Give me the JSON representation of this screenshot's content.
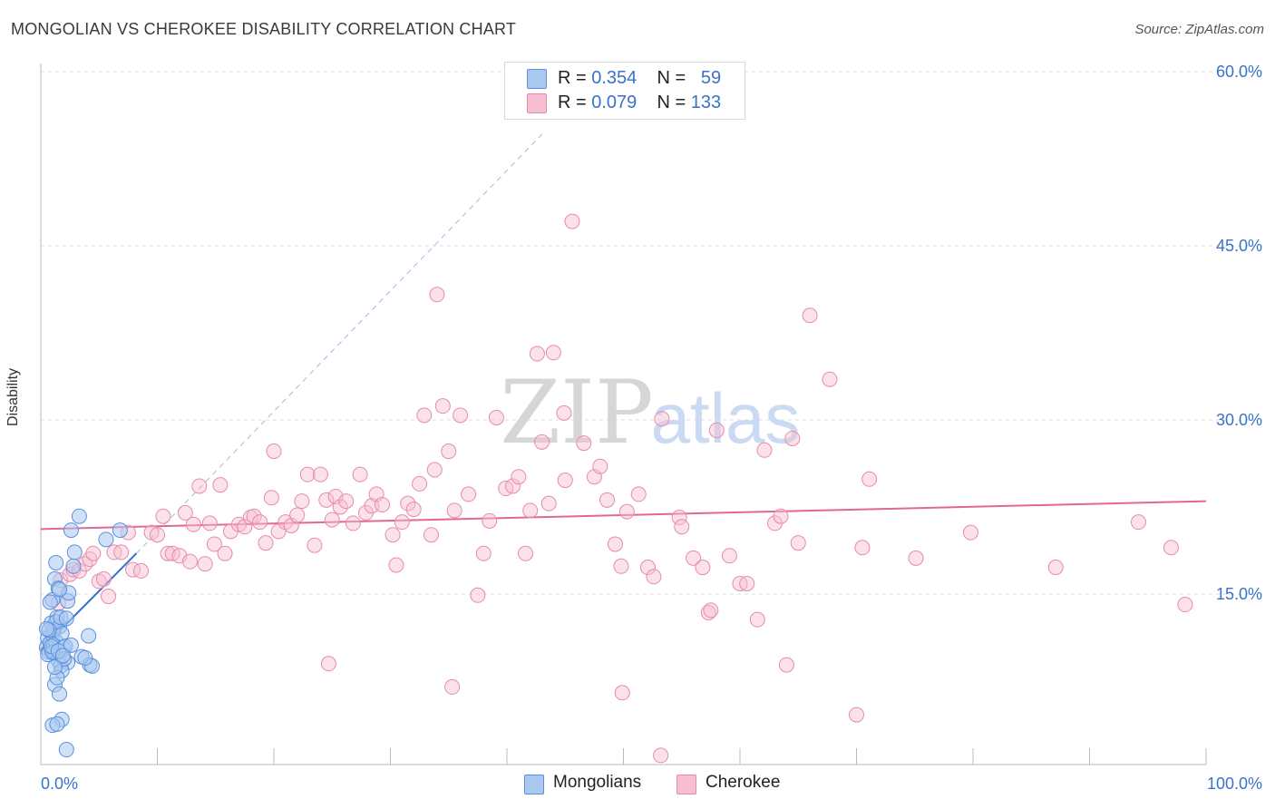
{
  "header": {
    "title": "MONGOLIAN VS CHEROKEE DISABILITY CORRELATION CHART",
    "source": "Source: ZipAtlas.com"
  },
  "watermark": {
    "zip": "ZIP",
    "atlas": "atlas"
  },
  "legend_top": [
    {
      "r_label": "R =",
      "r_value": "0.354",
      "n_label": "N =",
      "n_value": "59"
    },
    {
      "r_label": "R =",
      "r_value": "0.079",
      "n_label": "N =",
      "n_value": "133"
    }
  ],
  "legend_bottom": {
    "mongolians": "Mongolians",
    "cherokee": "Cherokee"
  },
  "colors": {
    "mongolians_fill": "#a9c8f0",
    "mongolians_stroke": "#5b8fdc",
    "mongolians_line": "#2f6fd1",
    "cherokee_fill": "#f6bfd1",
    "cherokee_stroke": "#e88aab",
    "cherokee_line": "#e0679a",
    "tick_label": "#3a72c9",
    "grid": "#dddddd"
  },
  "chart_data": {
    "type": "scatter",
    "title": "MONGOLIAN VS CHEROKEE DISABILITY CORRELATION CHART",
    "xlabel": "",
    "ylabel": "Disability",
    "xlim": [
      0,
      100
    ],
    "ylim": [
      0,
      62
    ],
    "x_tick_labels": [
      "0.0%",
      "100.0%"
    ],
    "y_ticks": [
      15,
      30,
      45,
      60
    ],
    "y_tick_labels": [
      "15.0%",
      "30.0%",
      "45.0%",
      "60.0%"
    ],
    "grid": true,
    "legend_position": "top-center",
    "series": [
      {
        "name": "Mongolians",
        "r": 0.354,
        "n": 59,
        "trend": {
          "x0": 0,
          "y0": 10.2,
          "x1": 8.2,
          "y1": 18.5,
          "dashed_to_x": 43,
          "dashed_to_y": 54.6
        },
        "points": [
          [
            0.5,
            10.4
          ],
          [
            0.6,
            11.2
          ],
          [
            0.7,
            10.0
          ],
          [
            0.8,
            10.8
          ],
          [
            0.9,
            10.2
          ],
          [
            1.0,
            11.5
          ],
          [
            1.1,
            10.6
          ],
          [
            0.6,
            9.8
          ],
          [
            1.2,
            10.0
          ],
          [
            1.3,
            10.9
          ],
          [
            0.9,
            12.5
          ],
          [
            1.0,
            14.5
          ],
          [
            1.2,
            16.3
          ],
          [
            1.3,
            17.7
          ],
          [
            1.5,
            15.5
          ],
          [
            1.4,
            13.0
          ],
          [
            1.6,
            12.2
          ],
          [
            1.1,
            11.9
          ],
          [
            1.8,
            11.6
          ],
          [
            1.9,
            10.4
          ],
          [
            2.1,
            10.5
          ],
          [
            2.3,
            9.1
          ],
          [
            1.5,
            9.3
          ],
          [
            1.7,
            8.8
          ],
          [
            1.8,
            8.4
          ],
          [
            2.0,
            9.4
          ],
          [
            1.2,
            7.2
          ],
          [
            1.4,
            7.8
          ],
          [
            1.6,
            6.4
          ],
          [
            1.8,
            4.2
          ],
          [
            1.0,
            3.7
          ],
          [
            1.4,
            3.8
          ],
          [
            2.2,
            1.6
          ],
          [
            2.3,
            14.4
          ],
          [
            2.4,
            15.1
          ],
          [
            2.8,
            17.4
          ],
          [
            2.9,
            18.6
          ],
          [
            2.6,
            20.5
          ],
          [
            3.3,
            21.7
          ],
          [
            4.1,
            11.4
          ],
          [
            3.5,
            9.6
          ],
          [
            4.2,
            8.9
          ],
          [
            4.4,
            8.8
          ],
          [
            3.8,
            9.5
          ],
          [
            5.6,
            19.7
          ],
          [
            6.8,
            20.5
          ],
          [
            0.8,
            14.3
          ],
          [
            1.3,
            12.6
          ],
          [
            1.7,
            13.0
          ],
          [
            1.0,
            10.0
          ],
          [
            0.7,
            11.9
          ],
          [
            0.9,
            10.5
          ],
          [
            1.5,
            10.1
          ],
          [
            2.6,
            10.6
          ],
          [
            1.2,
            8.7
          ],
          [
            1.9,
            9.7
          ],
          [
            2.2,
            12.9
          ],
          [
            1.6,
            15.4
          ],
          [
            0.5,
            12.0
          ]
        ]
      },
      {
        "name": "Cherokee",
        "r": 0.079,
        "n": 133,
        "trend": {
          "x0": 0,
          "y0": 20.6,
          "x1": 100,
          "y1": 23.0
        },
        "points": [
          [
            1.5,
            14.2
          ],
          [
            1.7,
            16.2
          ],
          [
            2.5,
            16.7
          ],
          [
            2.8,
            17.1
          ],
          [
            3.3,
            17.0
          ],
          [
            3.8,
            17.6
          ],
          [
            4.2,
            18.0
          ],
          [
            4.5,
            18.5
          ],
          [
            5.0,
            16.1
          ],
          [
            5.4,
            16.3
          ],
          [
            5.8,
            14.8
          ],
          [
            6.3,
            18.6
          ],
          [
            6.9,
            18.6
          ],
          [
            7.5,
            20.3
          ],
          [
            7.9,
            17.1
          ],
          [
            8.6,
            17.0
          ],
          [
            9.5,
            20.3
          ],
          [
            10.0,
            20.1
          ],
          [
            10.5,
            21.7
          ],
          [
            10.9,
            18.5
          ],
          [
            11.3,
            18.5
          ],
          [
            11.9,
            18.3
          ],
          [
            12.4,
            22.0
          ],
          [
            12.8,
            17.8
          ],
          [
            13.1,
            21.0
          ],
          [
            13.6,
            24.3
          ],
          [
            14.1,
            17.6
          ],
          [
            14.5,
            21.1
          ],
          [
            14.9,
            19.3
          ],
          [
            15.4,
            24.4
          ],
          [
            15.8,
            18.5
          ],
          [
            16.3,
            20.4
          ],
          [
            17.0,
            21.0
          ],
          [
            17.5,
            20.8
          ],
          [
            18.0,
            21.6
          ],
          [
            18.3,
            21.7
          ],
          [
            18.8,
            21.2
          ],
          [
            19.3,
            19.4
          ],
          [
            19.8,
            23.3
          ],
          [
            20.4,
            20.4
          ],
          [
            20.0,
            27.3
          ],
          [
            21.0,
            21.2
          ],
          [
            21.5,
            20.9
          ],
          [
            22.0,
            21.8
          ],
          [
            22.4,
            23.0
          ],
          [
            22.9,
            25.3
          ],
          [
            23.5,
            19.2
          ],
          [
            24.0,
            25.3
          ],
          [
            24.5,
            23.1
          ],
          [
            25.0,
            21.4
          ],
          [
            25.3,
            23.4
          ],
          [
            25.7,
            22.5
          ],
          [
            26.2,
            23.0
          ],
          [
            26.8,
            21.1
          ],
          [
            27.4,
            25.3
          ],
          [
            27.9,
            22.0
          ],
          [
            28.4,
            22.6
          ],
          [
            28.8,
            23.6
          ],
          [
            29.3,
            22.7
          ],
          [
            30.2,
            20.1
          ],
          [
            30.5,
            17.5
          ],
          [
            31.0,
            21.2
          ],
          [
            31.5,
            22.8
          ],
          [
            32.0,
            22.3
          ],
          [
            32.5,
            24.5
          ],
          [
            32.9,
            30.4
          ],
          [
            33.5,
            20.1
          ],
          [
            33.8,
            25.7
          ],
          [
            34.0,
            40.8
          ],
          [
            34.5,
            31.2
          ],
          [
            35.0,
            27.3
          ],
          [
            35.5,
            22.2
          ],
          [
            36.0,
            30.4
          ],
          [
            36.7,
            23.6
          ],
          [
            37.5,
            14.9
          ],
          [
            38.0,
            18.5
          ],
          [
            38.5,
            21.3
          ],
          [
            39.1,
            30.2
          ],
          [
            39.9,
            24.1
          ],
          [
            40.5,
            24.3
          ],
          [
            41.0,
            25.1
          ],
          [
            41.6,
            18.5
          ],
          [
            42.0,
            22.2
          ],
          [
            42.6,
            35.7
          ],
          [
            43.0,
            28.1
          ],
          [
            43.6,
            22.8
          ],
          [
            44.0,
            35.8
          ],
          [
            44.9,
            30.6
          ],
          [
            45.0,
            24.8
          ],
          [
            45.6,
            47.1
          ],
          [
            46.6,
            28.0
          ],
          [
            47.5,
            25.1
          ],
          [
            48.0,
            26.0
          ],
          [
            48.6,
            23.1
          ],
          [
            49.3,
            19.3
          ],
          [
            49.8,
            17.4
          ],
          [
            50.3,
            22.1
          ],
          [
            51.3,
            23.6
          ],
          [
            52.1,
            17.3
          ],
          [
            52.6,
            16.5
          ],
          [
            53.3,
            30.1
          ],
          [
            54.8,
            21.6
          ],
          [
            55.0,
            20.8
          ],
          [
            56.0,
            18.1
          ],
          [
            56.8,
            17.3
          ],
          [
            57.3,
            13.4
          ],
          [
            57.5,
            13.6
          ],
          [
            58.0,
            29.1
          ],
          [
            59.1,
            18.3
          ],
          [
            60.0,
            15.9
          ],
          [
            60.6,
            15.9
          ],
          [
            61.5,
            12.8
          ],
          [
            62.1,
            27.4
          ],
          [
            63.0,
            21.1
          ],
          [
            63.5,
            21.7
          ],
          [
            64.0,
            8.9
          ],
          [
            64.5,
            28.4
          ],
          [
            65.0,
            19.4
          ],
          [
            66.0,
            39.0
          ],
          [
            67.7,
            33.5
          ],
          [
            70.0,
            4.6
          ],
          [
            70.5,
            19.0
          ],
          [
            71.1,
            24.9
          ],
          [
            75.1,
            18.1
          ],
          [
            79.8,
            20.3
          ],
          [
            87.1,
            17.3
          ],
          [
            94.2,
            21.2
          ],
          [
            97.0,
            19.0
          ],
          [
            98.2,
            14.1
          ],
          [
            24.7,
            9.0
          ],
          [
            35.3,
            7.0
          ],
          [
            49.9,
            6.5
          ],
          [
            53.2,
            1.1
          ]
        ]
      }
    ]
  }
}
